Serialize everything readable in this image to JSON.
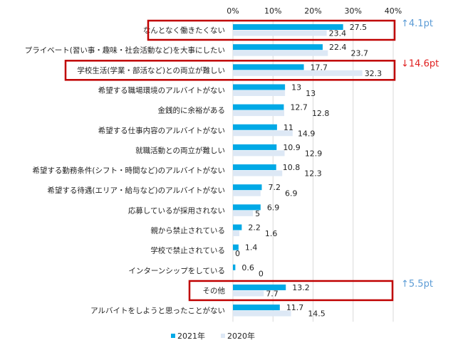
{
  "chart_data": {
    "type": "bar",
    "orientation": "horizontal",
    "xlim": [
      0,
      40
    ],
    "x_ticks": [
      "0%",
      "10%",
      "20%",
      "30%",
      "40%"
    ],
    "grid": true,
    "legend_position": "bottom",
    "categories": [
      "なんとなく働きたくない",
      "プライベート(習い事・趣味・社会活動など)を大事にしたい",
      "学校生活(学業・部活など)との両立が難しい",
      "希望する職場環境のアルバイトがない",
      "金銭的に余裕がある",
      "希望する仕事内容のアルバイトがない",
      "就職活動との両立が難しい",
      "希望する勤務条件(シフト・時間など)のアルバイトがない",
      "希望する待遇(エリア・給与など)のアルバイトがない",
      "応募しているが採用されない",
      "親から禁止されている",
      "学校で禁止されている",
      "インターンシップをしている",
      "その他",
      "アルバイトをしようと思ったことがない"
    ],
    "series": [
      {
        "name": "2021年",
        "color": "#00a9e6",
        "values": [
          27.5,
          22.4,
          17.7,
          13,
          12.7,
          11,
          10.9,
          10.8,
          7.2,
          6.9,
          2.2,
          1.4,
          0.6,
          13.2,
          11.7
        ]
      },
      {
        "name": "2020年",
        "color": "#dde8f5",
        "values": [
          23.4,
          23.7,
          32.3,
          13,
          12.8,
          14.9,
          12.9,
          12.3,
          6.9,
          5,
          1.6,
          0,
          0,
          7.7,
          14.5
        ]
      }
    ],
    "highlights": [
      {
        "category_index": 0,
        "label": "↑4.1pt",
        "color": "#5b9bd5"
      },
      {
        "category_index": 2,
        "label": "↓14.6pt",
        "color": "#e02020"
      },
      {
        "category_index": 13,
        "label": "↑5.5pt",
        "color": "#5b9bd5"
      }
    ],
    "highlight_box_color": "#c00000"
  }
}
